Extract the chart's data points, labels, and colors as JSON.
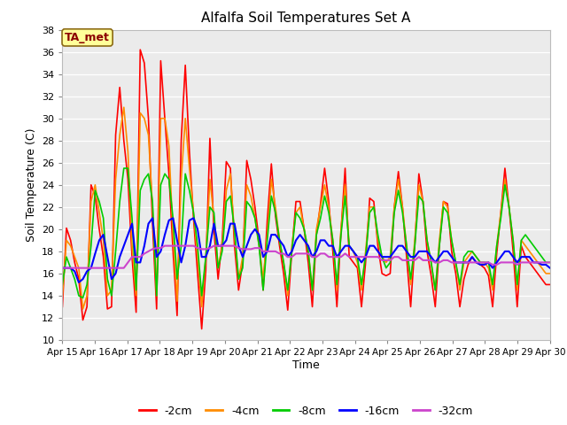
{
  "title": "Alfalfa Soil Temperatures Set A",
  "xlabel": "Time",
  "ylabel": "Soil Temperature (C)",
  "ylim": [
    10,
    38
  ],
  "yticks": [
    10,
    12,
    14,
    16,
    18,
    20,
    22,
    24,
    26,
    28,
    30,
    32,
    34,
    36,
    38
  ],
  "plot_bg_color": "#ebebeb",
  "fig_bg_color": "#ffffff",
  "annotation_text": "TA_met",
  "annotation_color": "#8b0000",
  "annotation_bg": "#ffff99",
  "annotation_edge": "#8b6914",
  "series": {
    "-2cm": {
      "color": "#ff0000",
      "linewidth": 1.2,
      "values": [
        13.0,
        20.1,
        19.0,
        17.0,
        15.5,
        11.8,
        13.0,
        24.0,
        23.0,
        20.0,
        17.5,
        12.8,
        13.0,
        28.5,
        32.8,
        28.0,
        24.5,
        17.5,
        12.5,
        36.2,
        35.0,
        30.0,
        20.5,
        12.8,
        35.2,
        30.0,
        25.0,
        18.0,
        12.2,
        28.0,
        34.8,
        27.0,
        21.0,
        16.0,
        11.0,
        16.3,
        28.2,
        19.8,
        15.5,
        19.0,
        26.1,
        25.5,
        18.5,
        14.5,
        17.0,
        26.2,
        24.5,
        22.0,
        19.0,
        14.5,
        20.8,
        25.9,
        21.2,
        18.5,
        16.0,
        12.7,
        18.0,
        22.5,
        22.5,
        20.0,
        17.0,
        13.0,
        19.5,
        22.3,
        25.5,
        22.5,
        18.0,
        13.0,
        19.8,
        25.5,
        17.5,
        17.0,
        16.5,
        13.0,
        17.0,
        22.8,
        22.5,
        18.5,
        16.0,
        15.8,
        16.0,
        22.0,
        25.2,
        22.0,
        17.5,
        13.0,
        18.5,
        25.0,
        22.5,
        18.0,
        15.8,
        13.0,
        18.5,
        22.5,
        22.3,
        18.0,
        16.0,
        13.0,
        15.5,
        16.8,
        17.5,
        17.0,
        16.8,
        16.5,
        15.8,
        13.0,
        17.8,
        21.5,
        25.5,
        22.0,
        18.0,
        13.0,
        18.5,
        17.5,
        17.0,
        16.5,
        16.0,
        15.5,
        15.0,
        15.0
      ]
    },
    "-4cm": {
      "color": "#ff8c00",
      "linewidth": 1.2,
      "values": [
        14.0,
        19.0,
        18.5,
        17.5,
        16.5,
        12.8,
        14.0,
        22.5,
        24.0,
        21.5,
        19.0,
        14.0,
        14.5,
        24.5,
        28.5,
        31.0,
        27.0,
        18.5,
        14.0,
        30.5,
        30.0,
        28.5,
        22.0,
        14.0,
        30.0,
        30.0,
        27.5,
        19.5,
        13.5,
        24.5,
        30.0,
        25.5,
        21.5,
        17.5,
        13.0,
        17.5,
        24.5,
        21.0,
        16.5,
        18.5,
        23.5,
        25.0,
        19.5,
        15.5,
        17.5,
        24.0,
        23.0,
        21.0,
        18.5,
        15.5,
        19.5,
        24.5,
        22.0,
        19.0,
        17.0,
        14.0,
        18.5,
        21.5,
        22.0,
        20.0,
        18.0,
        14.5,
        20.0,
        22.0,
        24.0,
        22.0,
        19.0,
        14.5,
        20.0,
        24.0,
        18.5,
        18.0,
        17.0,
        14.5,
        18.0,
        22.0,
        22.0,
        19.0,
        17.5,
        17.0,
        17.5,
        22.0,
        24.5,
        22.0,
        18.5,
        15.0,
        19.0,
        24.0,
        22.5,
        19.0,
        17.0,
        14.5,
        19.0,
        22.5,
        22.0,
        19.0,
        17.0,
        14.5,
        17.0,
        17.5,
        18.0,
        17.5,
        17.0,
        17.0,
        16.5,
        14.5,
        18.5,
        21.5,
        24.5,
        22.0,
        19.0,
        14.5,
        19.0,
        18.5,
        18.0,
        17.5,
        17.0,
        16.5,
        16.0,
        16.0
      ]
    },
    "-8cm": {
      "color": "#00cc00",
      "linewidth": 1.2,
      "values": [
        15.0,
        17.5,
        16.5,
        15.5,
        14.0,
        13.8,
        15.0,
        18.5,
        23.5,
        22.5,
        21.0,
        15.5,
        14.0,
        18.0,
        22.5,
        25.5,
        25.5,
        21.0,
        14.5,
        23.5,
        24.5,
        25.0,
        22.5,
        14.0,
        24.0,
        25.0,
        24.5,
        21.0,
        15.5,
        18.5,
        25.0,
        23.5,
        21.5,
        18.5,
        14.0,
        17.5,
        22.0,
        21.5,
        16.5,
        18.0,
        22.5,
        23.0,
        20.0,
        15.5,
        16.5,
        22.5,
        22.0,
        21.0,
        18.5,
        14.5,
        19.0,
        23.0,
        21.5,
        19.0,
        17.0,
        14.5,
        18.0,
        21.5,
        21.0,
        20.0,
        18.0,
        14.5,
        19.5,
        21.0,
        23.0,
        21.5,
        19.0,
        15.0,
        19.5,
        23.0,
        18.5,
        18.0,
        17.5,
        15.0,
        17.5,
        21.5,
        22.0,
        19.5,
        17.5,
        16.5,
        17.0,
        21.5,
        23.5,
        21.5,
        18.5,
        15.5,
        18.5,
        23.0,
        22.5,
        19.0,
        17.0,
        14.5,
        18.5,
        22.0,
        21.5,
        19.0,
        17.0,
        15.0,
        17.5,
        18.0,
        18.0,
        17.5,
        17.0,
        17.0,
        17.0,
        15.0,
        18.5,
        21.0,
        24.0,
        22.0,
        19.0,
        15.0,
        19.0,
        19.5,
        19.0,
        18.5,
        18.0,
        17.5,
        17.0,
        17.0
      ]
    },
    "-16cm": {
      "color": "#0000ff",
      "linewidth": 1.5,
      "values": [
        16.5,
        16.5,
        16.5,
        16.2,
        15.2,
        15.5,
        16.2,
        16.5,
        17.8,
        19.0,
        19.5,
        17.5,
        15.5,
        16.0,
        17.5,
        18.5,
        19.5,
        20.5,
        17.0,
        17.0,
        18.5,
        20.5,
        21.0,
        17.5,
        18.0,
        19.5,
        20.8,
        21.0,
        19.0,
        17.0,
        18.5,
        20.8,
        21.0,
        20.0,
        17.5,
        17.5,
        18.5,
        20.5,
        18.5,
        18.5,
        19.0,
        20.5,
        20.5,
        18.5,
        17.5,
        18.5,
        19.5,
        20.0,
        19.5,
        17.5,
        18.0,
        19.5,
        19.5,
        19.0,
        18.5,
        17.5,
        18.0,
        19.0,
        19.5,
        19.0,
        18.5,
        17.5,
        18.0,
        19.0,
        19.0,
        18.5,
        18.5,
        17.5,
        18.0,
        18.5,
        18.5,
        18.0,
        17.5,
        17.0,
        17.5,
        18.5,
        18.5,
        18.0,
        17.5,
        17.5,
        17.5,
        18.0,
        18.5,
        18.5,
        18.0,
        17.5,
        17.5,
        18.0,
        18.0,
        18.0,
        17.5,
        17.0,
        17.5,
        18.0,
        18.0,
        17.5,
        17.0,
        17.0,
        17.0,
        17.0,
        17.5,
        17.0,
        16.8,
        16.8,
        17.0,
        16.5,
        17.0,
        17.5,
        18.0,
        18.0,
        17.5,
        17.0,
        17.5,
        17.5,
        17.5,
        17.0,
        17.0,
        16.8,
        16.8,
        16.5
      ]
    },
    "-32cm": {
      "color": "#cc44cc",
      "linewidth": 1.5,
      "values": [
        16.5,
        16.5,
        16.5,
        16.5,
        16.5,
        16.5,
        16.5,
        16.5,
        16.5,
        16.5,
        16.5,
        16.5,
        16.5,
        16.5,
        16.5,
        16.5,
        17.0,
        17.5,
        17.5,
        17.5,
        17.8,
        18.0,
        18.2,
        18.3,
        18.3,
        18.5,
        18.5,
        18.5,
        18.5,
        18.5,
        18.5,
        18.5,
        18.5,
        18.3,
        18.2,
        18.2,
        18.3,
        18.5,
        18.5,
        18.5,
        18.5,
        18.5,
        18.5,
        18.3,
        18.2,
        18.2,
        18.2,
        18.3,
        18.3,
        18.0,
        18.0,
        18.0,
        18.0,
        17.8,
        17.8,
        17.5,
        17.5,
        17.8,
        17.8,
        17.8,
        17.8,
        17.5,
        17.5,
        17.8,
        17.8,
        17.5,
        17.5,
        17.5,
        17.5,
        17.8,
        17.5,
        17.5,
        17.5,
        17.5,
        17.5,
        17.5,
        17.5,
        17.5,
        17.2,
        17.2,
        17.2,
        17.5,
        17.5,
        17.2,
        17.2,
        17.2,
        17.2,
        17.5,
        17.2,
        17.2,
        17.2,
        17.0,
        17.0,
        17.2,
        17.2,
        17.0,
        17.0,
        17.0,
        17.0,
        17.0,
        17.0,
        17.0,
        17.0,
        17.0,
        17.0,
        16.8,
        16.8,
        17.0,
        17.0,
        17.0,
        17.0,
        16.8,
        17.0,
        17.0,
        17.0,
        17.0,
        17.0,
        17.0,
        17.0,
        17.0
      ]
    }
  },
  "xtick_labels": [
    "Apr 15",
    "Apr 16",
    "Apr 17",
    "Apr 18",
    "Apr 19",
    "Apr 20",
    "Apr 21",
    "Apr 22",
    "Apr 23",
    "Apr 24",
    "Apr 25",
    "Apr 26",
    "Apr 27",
    "Apr 28",
    "Apr 29",
    "Apr 30"
  ],
  "n_points": 120,
  "days": 15
}
